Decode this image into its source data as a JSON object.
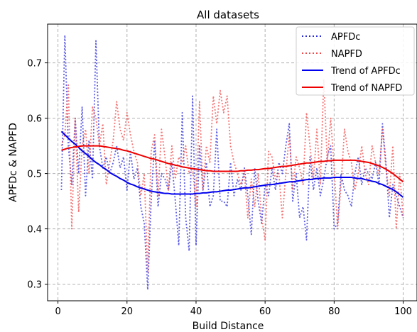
{
  "chart_data": {
    "type": "line",
    "title": "All datasets",
    "xlabel": "Build Distance",
    "ylabel": "APFDc & NAPFD",
    "xlim": [
      -3,
      104
    ],
    "ylim": [
      0.27,
      0.77
    ],
    "xticks": [
      0,
      20,
      40,
      60,
      80,
      100
    ],
    "yticks": [
      0.3,
      0.4,
      0.5,
      0.6,
      0.7
    ],
    "xtick_labels": [
      "0",
      "20",
      "40",
      "60",
      "80",
      "100"
    ],
    "ytick_labels": [
      "0.3",
      "0.4",
      "0.5",
      "0.6",
      "0.7"
    ],
    "grid": true,
    "legend_position": "top-right",
    "colors": {
      "apfdc": "#2b2bd9",
      "napfd": "#f04a4a",
      "trend_apfdc": "#0000ee",
      "trend_napfd": "#ee0000"
    },
    "x": [
      1,
      2,
      3,
      4,
      5,
      6,
      7,
      8,
      9,
      10,
      11,
      12,
      13,
      14,
      15,
      16,
      17,
      18,
      19,
      20,
      21,
      22,
      23,
      24,
      25,
      26,
      27,
      28,
      29,
      30,
      31,
      32,
      33,
      34,
      35,
      36,
      37,
      38,
      39,
      40,
      41,
      42,
      43,
      44,
      45,
      46,
      47,
      48,
      49,
      50,
      51,
      52,
      53,
      54,
      55,
      56,
      57,
      58,
      59,
      60,
      61,
      62,
      63,
      64,
      65,
      66,
      67,
      68,
      69,
      70,
      71,
      72,
      73,
      74,
      75,
      76,
      77,
      78,
      79,
      80,
      81,
      82,
      83,
      84,
      85,
      86,
      87,
      88,
      89,
      90,
      91,
      92,
      93,
      94,
      95,
      96,
      97,
      98,
      99,
      100
    ],
    "series": [
      {
        "name": "APFDc",
        "style": "dotted",
        "values": [
          0.47,
          0.75,
          0.55,
          0.48,
          0.6,
          0.5,
          0.62,
          0.46,
          0.56,
          0.49,
          0.74,
          0.55,
          0.51,
          0.53,
          0.5,
          0.52,
          0.55,
          0.51,
          0.53,
          0.47,
          0.54,
          0.49,
          0.51,
          0.44,
          0.41,
          0.29,
          0.45,
          0.56,
          0.44,
          0.5,
          0.49,
          0.47,
          0.52,
          0.45,
          0.37,
          0.61,
          0.42,
          0.36,
          0.64,
          0.37,
          0.55,
          0.47,
          0.52,
          0.44,
          0.46,
          0.58,
          0.45,
          0.45,
          0.44,
          0.52,
          0.46,
          0.49,
          0.47,
          0.51,
          0.46,
          0.39,
          0.51,
          0.45,
          0.41,
          0.48,
          0.46,
          0.51,
          0.47,
          0.52,
          0.5,
          0.55,
          0.59,
          0.45,
          0.5,
          0.42,
          0.44,
          0.38,
          0.53,
          0.47,
          0.51,
          0.46,
          0.49,
          0.53,
          0.55,
          0.4,
          0.41,
          0.5,
          0.47,
          0.46,
          0.44,
          0.5,
          0.53,
          0.48,
          0.51,
          0.5,
          0.49,
          0.52,
          0.48,
          0.59,
          0.52,
          0.42,
          0.48,
          0.46,
          0.44,
          0.42
        ]
      },
      {
        "name": "NAPFD",
        "style": "dotted",
        "values": [
          0.55,
          0.57,
          0.66,
          0.4,
          0.6,
          0.43,
          0.55,
          0.58,
          0.5,
          0.62,
          0.6,
          0.55,
          0.59,
          0.48,
          0.52,
          0.56,
          0.63,
          0.58,
          0.56,
          0.61,
          0.57,
          0.54,
          0.52,
          0.46,
          0.5,
          0.32,
          0.54,
          0.57,
          0.46,
          0.58,
          0.53,
          0.47,
          0.55,
          0.49,
          0.53,
          0.52,
          0.55,
          0.5,
          0.51,
          0.44,
          0.63,
          0.47,
          0.55,
          0.52,
          0.64,
          0.59,
          0.65,
          0.61,
          0.64,
          0.55,
          0.52,
          0.5,
          0.48,
          0.5,
          0.42,
          0.49,
          0.44,
          0.5,
          0.42,
          0.38,
          0.54,
          0.53,
          0.49,
          0.5,
          0.42,
          0.5,
          0.57,
          0.47,
          0.53,
          0.51,
          0.48,
          0.61,
          0.55,
          0.49,
          0.58,
          0.48,
          0.67,
          0.52,
          0.6,
          0.51,
          0.4,
          0.48,
          0.58,
          0.54,
          0.52,
          0.47,
          0.5,
          0.55,
          0.5,
          0.48,
          0.55,
          0.52,
          0.5,
          0.58,
          0.51,
          0.46,
          0.55,
          0.4,
          0.5,
          0.42
        ]
      },
      {
        "name": "Trend of APFDc",
        "style": "solid",
        "values": [
          0.576,
          0.57,
          0.564,
          0.558,
          0.553,
          0.547,
          0.541,
          0.536,
          0.531,
          0.525,
          0.52,
          0.516,
          0.511,
          0.507,
          0.502,
          0.498,
          0.495,
          0.491,
          0.488,
          0.484,
          0.481,
          0.479,
          0.476,
          0.474,
          0.472,
          0.47,
          0.468,
          0.467,
          0.466,
          0.465,
          0.464,
          0.464,
          0.463,
          0.463,
          0.463,
          0.463,
          0.463,
          0.463,
          0.463,
          0.464,
          0.464,
          0.465,
          0.465,
          0.466,
          0.467,
          0.467,
          0.468,
          0.469,
          0.47,
          0.47,
          0.471,
          0.472,
          0.473,
          0.474,
          0.474,
          0.475,
          0.476,
          0.477,
          0.478,
          0.479,
          0.48,
          0.48,
          0.481,
          0.482,
          0.483,
          0.484,
          0.485,
          0.485,
          0.486,
          0.487,
          0.488,
          0.489,
          0.489,
          0.49,
          0.491,
          0.491,
          0.492,
          0.492,
          0.492,
          0.493,
          0.493,
          0.493,
          0.493,
          0.493,
          0.493,
          0.492,
          0.491,
          0.491,
          0.489,
          0.488,
          0.486,
          0.485,
          0.482,
          0.48,
          0.477,
          0.474,
          0.471,
          0.467,
          0.462,
          0.457
        ]
      },
      {
        "name": "Trend of NAPFD",
        "style": "solid",
        "values": [
          0.542,
          0.544,
          0.546,
          0.547,
          0.548,
          0.549,
          0.55,
          0.55,
          0.55,
          0.55,
          0.55,
          0.55,
          0.549,
          0.548,
          0.547,
          0.546,
          0.545,
          0.544,
          0.542,
          0.541,
          0.539,
          0.537,
          0.535,
          0.533,
          0.531,
          0.529,
          0.527,
          0.526,
          0.524,
          0.522,
          0.52,
          0.518,
          0.517,
          0.515,
          0.514,
          0.512,
          0.511,
          0.51,
          0.509,
          0.508,
          0.507,
          0.506,
          0.505,
          0.505,
          0.504,
          0.504,
          0.504,
          0.504,
          0.504,
          0.504,
          0.504,
          0.504,
          0.505,
          0.505,
          0.506,
          0.506,
          0.507,
          0.507,
          0.508,
          0.509,
          0.509,
          0.51,
          0.511,
          0.512,
          0.513,
          0.513,
          0.514,
          0.515,
          0.516,
          0.517,
          0.518,
          0.519,
          0.519,
          0.52,
          0.521,
          0.522,
          0.522,
          0.523,
          0.523,
          0.524,
          0.524,
          0.524,
          0.524,
          0.524,
          0.524,
          0.524,
          0.523,
          0.522,
          0.521,
          0.52,
          0.518,
          0.516,
          0.514,
          0.511,
          0.508,
          0.504,
          0.5,
          0.495,
          0.49,
          0.485
        ]
      }
    ]
  }
}
